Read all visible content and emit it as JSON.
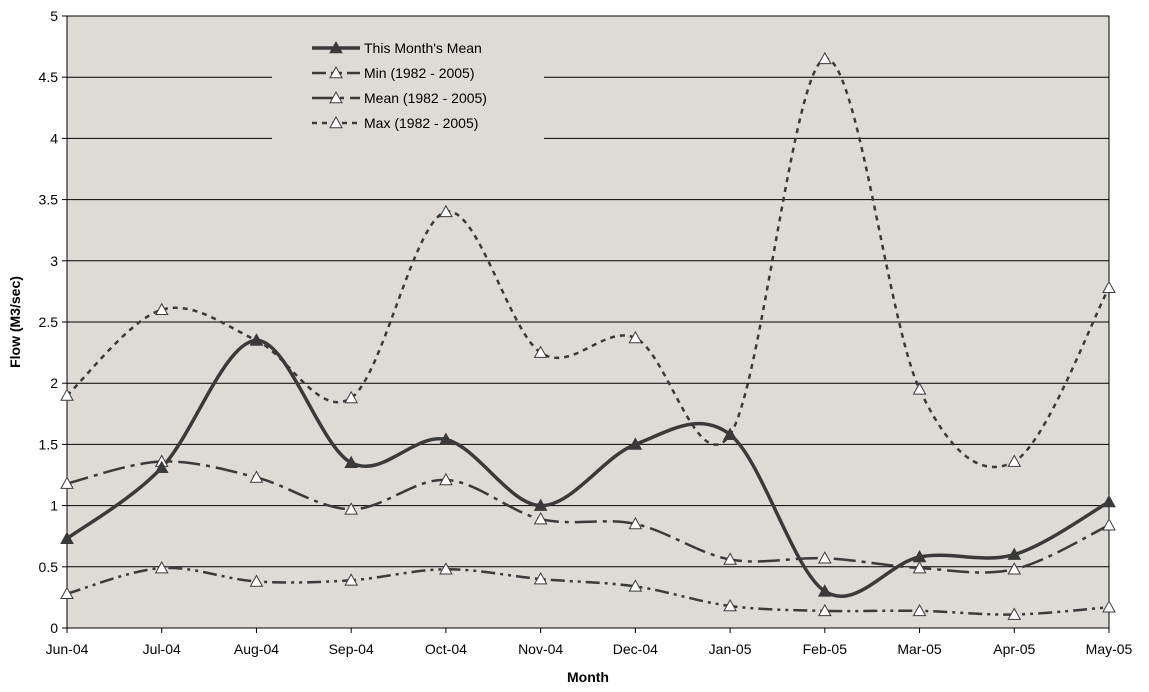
{
  "chart_data": {
    "type": "line",
    "title": "",
    "xlabel": "Month",
    "ylabel": "Flow (M3/sec)",
    "ylim": [
      0,
      5
    ],
    "yticks": [
      "0",
      "0.5",
      "1",
      "1.5",
      "2",
      "2.5",
      "3",
      "3.5",
      "4",
      "4.5",
      "5"
    ],
    "categories": [
      "Jun-04",
      "Jul-04",
      "Aug-04",
      "Sep-04",
      "Oct-04",
      "Nov-04",
      "Dec-04",
      "Jan-05",
      "Feb-05",
      "Mar-05",
      "Apr-05",
      "May-05"
    ],
    "grid": "horizontal",
    "legend_position": "top-center",
    "plot_background": "#DEDAD6",
    "series": [
      {
        "name": "This Month's Mean",
        "style": "solid-thick",
        "marker": "filled-triangle",
        "color": "#3a3a3a",
        "values": [
          0.73,
          1.31,
          2.35,
          1.35,
          1.54,
          1.0,
          1.5,
          1.58,
          0.3,
          0.58,
          0.6,
          1.03
        ]
      },
      {
        "name": "Min (1982 - 2005)",
        "style": "dash-dot-dot",
        "marker": "open-triangle",
        "color": "#3a3a3a",
        "values": [
          0.28,
          0.49,
          0.38,
          0.39,
          0.48,
          0.4,
          0.34,
          0.18,
          0.14,
          0.14,
          0.11,
          0.17
        ]
      },
      {
        "name": "Mean (1982 - 2005)",
        "style": "long-dash-dot",
        "marker": "open-triangle",
        "color": "#3a3a3a",
        "values": [
          1.18,
          1.36,
          1.23,
          0.97,
          1.21,
          0.89,
          0.85,
          0.56,
          0.57,
          0.49,
          0.48,
          0.84
        ]
      },
      {
        "name": "Max (1982 - 2005)",
        "style": "dotted",
        "marker": "open-triangle",
        "color": "#3a3a3a",
        "values": [
          1.9,
          2.6,
          2.35,
          1.88,
          3.4,
          2.25,
          2.37,
          1.58,
          4.65,
          1.95,
          1.36,
          2.78
        ]
      }
    ]
  }
}
